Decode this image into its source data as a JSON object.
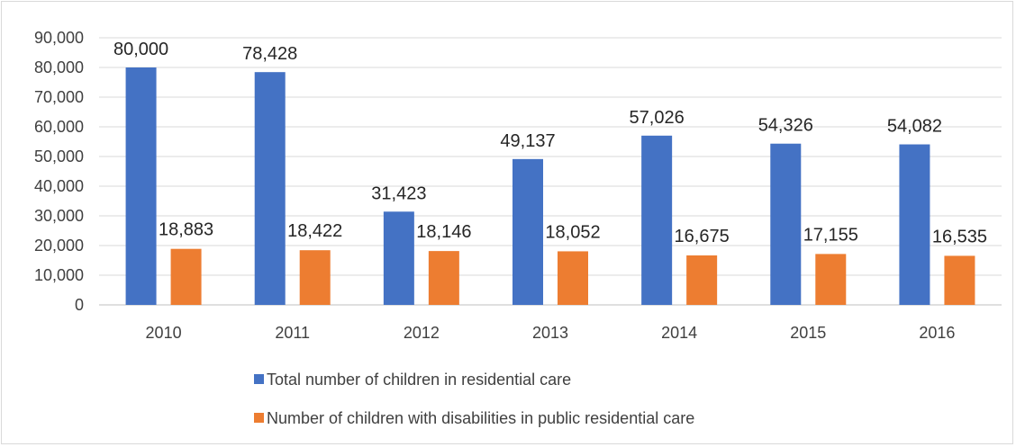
{
  "chart_data": {
    "type": "bar",
    "categories": [
      "2010",
      "2011",
      "2012",
      "2013",
      "2014",
      "2015",
      "2016"
    ],
    "series": [
      {
        "name": "Total number of children in residential care",
        "values": [
          80000,
          78428,
          31423,
          49137,
          57026,
          54326,
          54082
        ],
        "labels": [
          "80,000",
          "78,428",
          "31,423",
          "49,137",
          "57,026",
          "54,326",
          "54,082"
        ],
        "color": "#4472c4"
      },
      {
        "name": "Number of children with disabilities in public residential care",
        "values": [
          18883,
          18422,
          18146,
          18052,
          16675,
          17155,
          16535
        ],
        "labels": [
          "18,883",
          "18,422",
          "18,146",
          "18,052",
          "16,675",
          "17,155",
          "16,535"
        ],
        "color": "#ed7d31"
      }
    ],
    "ylim": [
      0,
      90000
    ],
    "yticks": [
      0,
      10000,
      20000,
      30000,
      40000,
      50000,
      60000,
      70000,
      80000,
      90000
    ],
    "ytick_labels": [
      "0",
      "10,000",
      "20,000",
      "30,000",
      "40,000",
      "50,000",
      "60,000",
      "70,000",
      "80,000",
      "90,000"
    ],
    "grid": true,
    "legend_position": "bottom",
    "title": "",
    "xlabel": "",
    "ylabel": ""
  }
}
